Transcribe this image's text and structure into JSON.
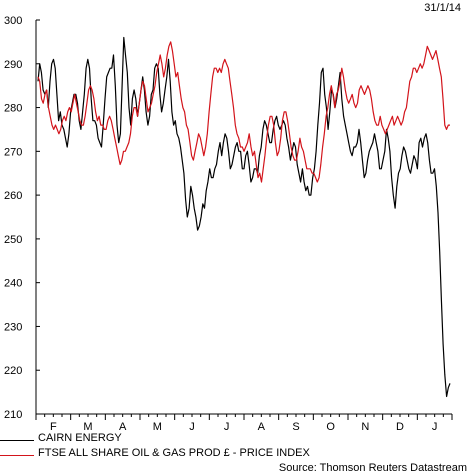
{
  "date_label": "31/1/14",
  "source": "Source: Thomson Reuters Datastream",
  "colors": {
    "cairn": "#000000",
    "ftse": "#d3141b",
    "axis": "#000000"
  },
  "chart_data": {
    "type": "line",
    "title": "",
    "xlabel": "",
    "ylabel": "",
    "ylim": [
      210,
      300
    ],
    "yticks": [
      210,
      220,
      230,
      240,
      250,
      260,
      270,
      280,
      290,
      300
    ],
    "x_axis": "monthly, Feb 2013 to Jan 2014 (daily data)",
    "months": [
      "F",
      "M",
      "A",
      "M",
      "J",
      "J",
      "A",
      "S",
      "O",
      "N",
      "D",
      "J"
    ],
    "grid": false,
    "legend_position": "bottom-left",
    "series": [
      {
        "name": "CAIRN ENERGY",
        "color": "#000000",
        "values": [
          286,
          290,
          288,
          284,
          283,
          284,
          280,
          286,
          290,
          291,
          289,
          283,
          277,
          279,
          276,
          275,
          273,
          271,
          274,
          279,
          281,
          283,
          283,
          281,
          277,
          275,
          279,
          283,
          289,
          291,
          289,
          282,
          277,
          277,
          276,
          273,
          272,
          271,
          276,
          282,
          287,
          288,
          289,
          289,
          292,
          285,
          276,
          272,
          274,
          285,
          296,
          292,
          288,
          280,
          276,
          282,
          284,
          282,
          278,
          281,
          284,
          287,
          284,
          279,
          276,
          278,
          283,
          284,
          289,
          290,
          289,
          283,
          279,
          281,
          284,
          287,
          291,
          286,
          279,
          276,
          277,
          274,
          273,
          271,
          268,
          265,
          259,
          255,
          257,
          262,
          260,
          257,
          255,
          252,
          253,
          255,
          258,
          257,
          261,
          263,
          266,
          264,
          264,
          266,
          267,
          270,
          272,
          269,
          272,
          274,
          273,
          270,
          266,
          267,
          269,
          271,
          272,
          270,
          270,
          266,
          266,
          269,
          270,
          267,
          263,
          264,
          266,
          266,
          265,
          269,
          271,
          275,
          277,
          276,
          274,
          272,
          272,
          275,
          277,
          278,
          276,
          275,
          276,
          277,
          276,
          273,
          271,
          268,
          270,
          272,
          271,
          267,
          265,
          263,
          266,
          263,
          261,
          262,
          260,
          260,
          264,
          266,
          270,
          276,
          281,
          288,
          289,
          283,
          280,
          275,
          279,
          284,
          283,
          280,
          282,
          285,
          288,
          282,
          278,
          276,
          274,
          272,
          270,
          269,
          271,
          271,
          272,
          275,
          272,
          268,
          264,
          265,
          268,
          270,
          271,
          272,
          274,
          272,
          270,
          266,
          266,
          268,
          270,
          275,
          273,
          270,
          264,
          260,
          257,
          262,
          265,
          266,
          269,
          271,
          270,
          268,
          266,
          265,
          267,
          269,
          268,
          266,
          272,
          273,
          271,
          273,
          274,
          272,
          268,
          265,
          265,
          266,
          262,
          256,
          247,
          236,
          226,
          219,
          214,
          216,
          217
        ]
      },
      {
        "name": "FTSE ALL SHARE OIL & GAS PROD £ - PRICE INDEX",
        "color": "#d3141b",
        "values": [
          287,
          286,
          282,
          281,
          283,
          284,
          280,
          278,
          276,
          275,
          276,
          275,
          274,
          275,
          277,
          278,
          277,
          279,
          280,
          279,
          281,
          283,
          281,
          279,
          277,
          276,
          276,
          278,
          281,
          284,
          285,
          284,
          282,
          279,
          277,
          278,
          276,
          276,
          275,
          275,
          277,
          278,
          277,
          275,
          273,
          271,
          269,
          267,
          268,
          270,
          270,
          271,
          272,
          274,
          278,
          280,
          280,
          278,
          281,
          284,
          286,
          285,
          282,
          279,
          280,
          281,
          283,
          285,
          288,
          290,
          292,
          290,
          287,
          289,
          292,
          294,
          295,
          293,
          290,
          287,
          288,
          285,
          282,
          280,
          279,
          276,
          275,
          272,
          269,
          268,
          270,
          272,
          274,
          273,
          271,
          269,
          271,
          274,
          279,
          283,
          287,
          289,
          289,
          288,
          289,
          288,
          290,
          291,
          290,
          289,
          286,
          283,
          280,
          276,
          274,
          273,
          271,
          271,
          270,
          271,
          272,
          274,
          271,
          269,
          270,
          267,
          264,
          265,
          263,
          266,
          269,
          273,
          276,
          278,
          278,
          276,
          272,
          269,
          270,
          273,
          277,
          279,
          279,
          277,
          274,
          271,
          269,
          268,
          268,
          270,
          273,
          271,
          270,
          268,
          266,
          266,
          266,
          265,
          265,
          264,
          263,
          264,
          267,
          271,
          274,
          278,
          280,
          283,
          285,
          283,
          280,
          283,
          284,
          286,
          289,
          287,
          284,
          282,
          281,
          282,
          283,
          281,
          280,
          281,
          284,
          285,
          284,
          283,
          284,
          285,
          284,
          282,
          279,
          277,
          276,
          276,
          278,
          276,
          275,
          274,
          275,
          276,
          277,
          278,
          276,
          277,
          278,
          277,
          276,
          277,
          279,
          280,
          283,
          286,
          287,
          289,
          289,
          288,
          289,
          290,
          289,
          290,
          292,
          294,
          293,
          292,
          291,
          292,
          293,
          291,
          289,
          287,
          282,
          276,
          275,
          276,
          276
        ]
      }
    ]
  }
}
